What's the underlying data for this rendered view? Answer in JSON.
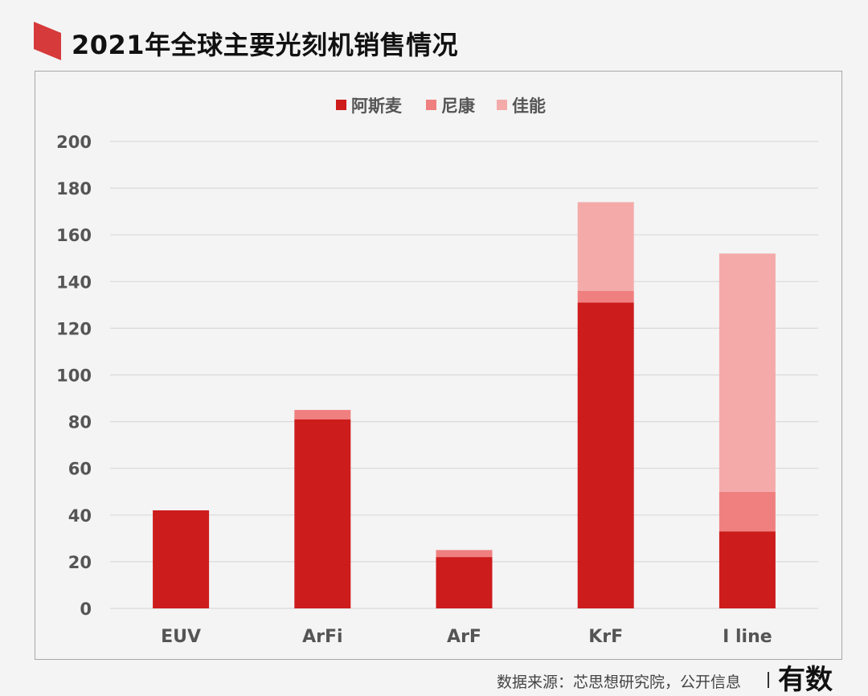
{
  "title": "2021年全球主要光刻机销售情况",
  "footer": {
    "source": "数据来源：芯思想研究院，公开信息",
    "logo": "有数"
  },
  "colors": {
    "accent": "#d63a3a",
    "series": [
      "#cd1c1c",
      "#f08080",
      "#f5aaaa"
    ],
    "grid": "#d9d9d9",
    "axis_text": "#555555"
  },
  "chart_data": {
    "type": "bar",
    "stacked": true,
    "categories": [
      "EUV",
      "ArFi",
      "ArF",
      "KrF",
      "I line"
    ],
    "series": [
      {
        "name": "阿斯麦",
        "values": [
          42,
          81,
          22,
          131,
          33
        ]
      },
      {
        "name": "尼康",
        "values": [
          0,
          4,
          3,
          5,
          17
        ]
      },
      {
        "name": "佳能",
        "values": [
          0,
          0,
          0,
          38,
          102
        ]
      }
    ],
    "ylim": [
      0,
      200
    ],
    "yticks": [
      "0",
      "20",
      "40",
      "60",
      "80",
      "100",
      "120",
      "140",
      "160",
      "180",
      "200"
    ],
    "grid": true,
    "legend_position": "top-center"
  }
}
